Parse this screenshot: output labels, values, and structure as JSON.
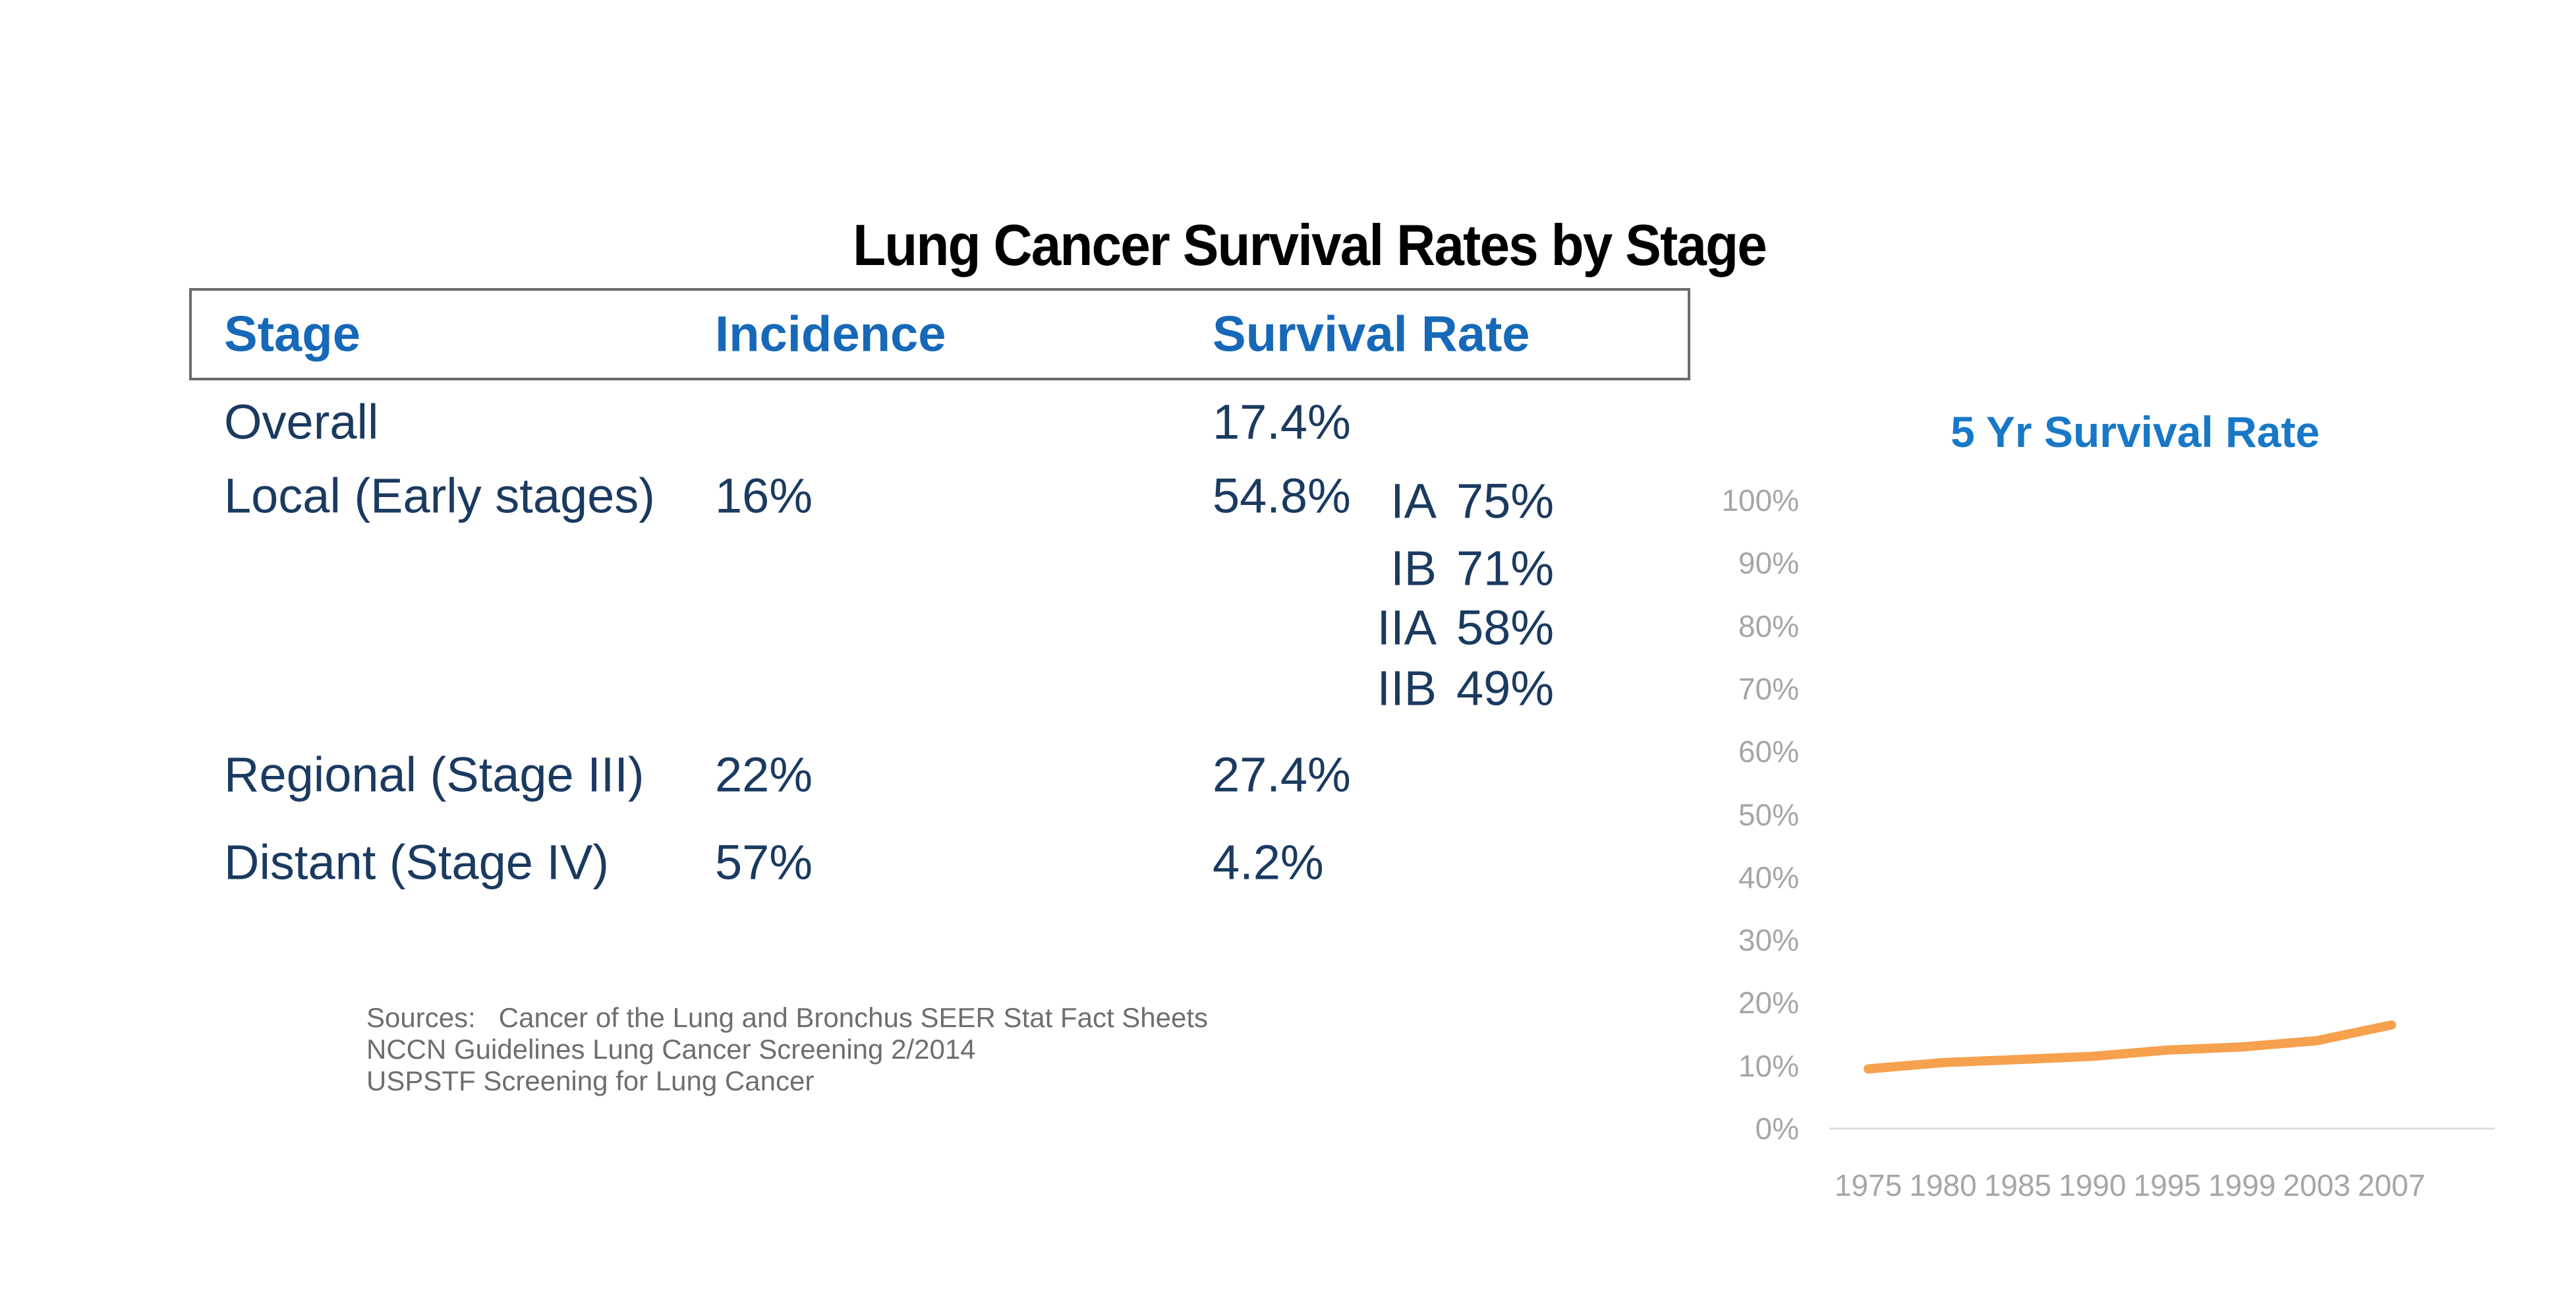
{
  "title": "Lung Cancer Survival Rates by Stage",
  "table": {
    "headers": [
      "Stage",
      "Incidence",
      "Survival Rate"
    ],
    "rows": [
      {
        "stage": "Overall",
        "incidence": "",
        "survival": "17.4%"
      },
      {
        "stage": "Local (Early stages)",
        "incidence": "16%",
        "survival": "54.8%",
        "substages": [
          {
            "code": "IA",
            "rate": "75%"
          },
          {
            "code": "IB",
            "rate": "71%"
          },
          {
            "code": "IIA",
            "rate": "58%"
          },
          {
            "code": "IIB",
            "rate": "49%"
          }
        ]
      },
      {
        "stage": "Regional (Stage III)",
        "incidence": "22%",
        "survival": "27.4%"
      },
      {
        "stage": "Distant (Stage IV)",
        "incidence": "57%",
        "survival": "4.2%"
      }
    ]
  },
  "sources": {
    "lines": [
      "Sources:   Cancer of the Lung and Bronchus SEER Stat Fact Sheets",
      "NCCN Guidelines Lung Cancer Screening 2/2014",
      "USPSTF Screening for Lung Cancer"
    ]
  },
  "chart_data": {
    "type": "line",
    "title": "5 Yr Survival Rate",
    "categories": [
      "1975",
      "1980",
      "1985",
      "1990",
      "1995",
      "1999",
      "2003",
      "2007"
    ],
    "series": [
      {
        "name": "5 Yr Survival Rate",
        "values": [
          9.5,
          10.5,
          11,
          11.5,
          12.5,
          13,
          14,
          16.5
        ]
      }
    ],
    "y_tick_labels": [
      "100%",
      "90%",
      "80%",
      "70%",
      "60%",
      "50%",
      "40%",
      "30%",
      "20%",
      "10%",
      "0%"
    ],
    "ylim": [
      0,
      100
    ],
    "xlabel": "",
    "ylabel": "",
    "grid": false,
    "legend": "none"
  },
  "colors": {
    "heading_blue": "#1668B8",
    "chart_title_blue": "#1878C8",
    "table_text_navy": "#1A3A60",
    "sources_gray": "#6E6E6E",
    "axis_label_gray": "#A6A6A6",
    "axis_line_gray": "#DCDCDC",
    "header_border_gray": "#6B6B6B",
    "line_orange": "#F6A14E",
    "background": "#FFFFFF",
    "title_black": "#000000"
  }
}
